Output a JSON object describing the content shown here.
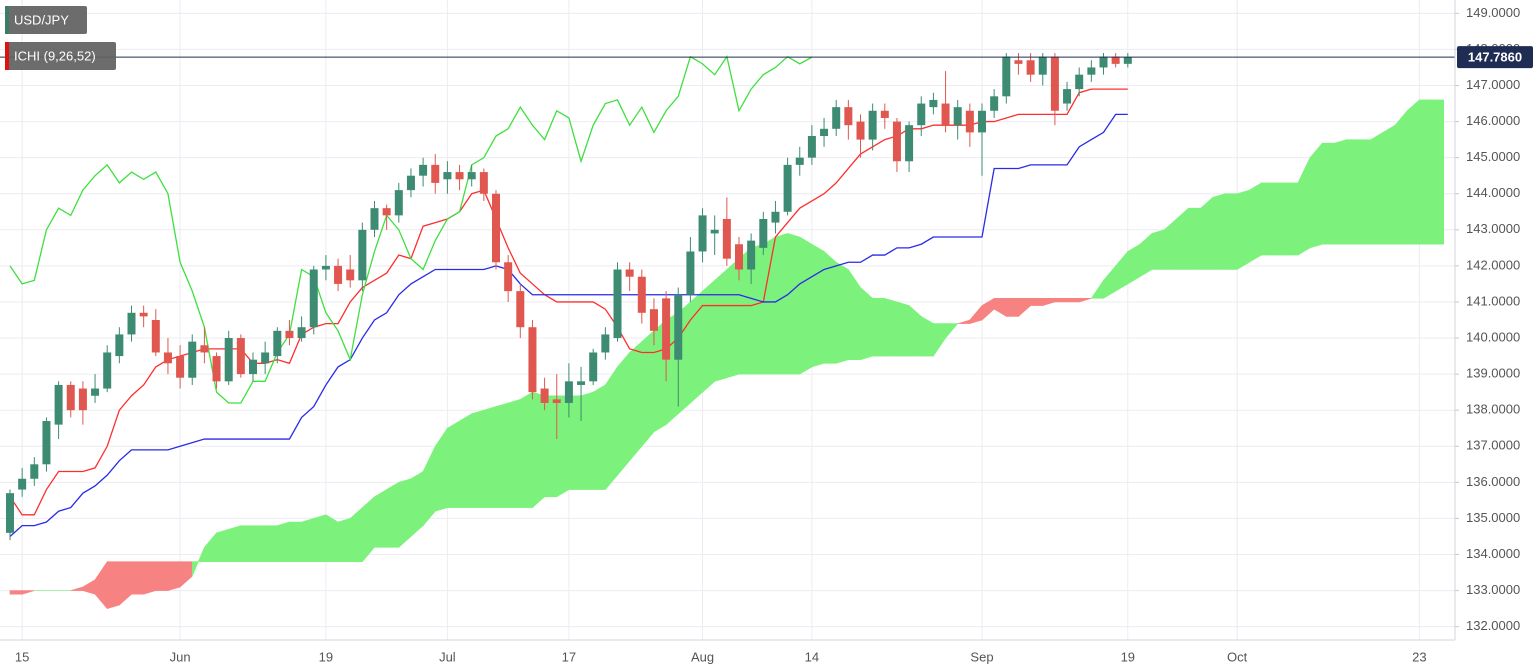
{
  "chart_data": {
    "type": "candlestick",
    "legend": [
      {
        "label": "USD/JPY",
        "color": "#3d7d67"
      },
      {
        "label": "ICHI (9,26,52)",
        "color": "#e01010"
      }
    ],
    "categories": [
      null,
      "15",
      null,
      null,
      null,
      null,
      null,
      null,
      null,
      null,
      null,
      null,
      null,
      null,
      "Jun",
      null,
      null,
      null,
      null,
      null,
      null,
      null,
      null,
      null,
      null,
      null,
      "19",
      null,
      null,
      null,
      null,
      null,
      null,
      null,
      null,
      null,
      "Jul",
      null,
      null,
      null,
      null,
      null,
      null,
      null,
      null,
      null,
      "17",
      null,
      null,
      null,
      null,
      null,
      null,
      null,
      null,
      null,
      null,
      "Aug",
      null,
      null,
      null,
      null,
      null,
      null,
      null,
      null,
      "14",
      null,
      null,
      null,
      null,
      null,
      null,
      null,
      null,
      null,
      null,
      null,
      null,
      null,
      "Sep",
      null,
      null,
      null,
      null,
      null,
      null,
      null,
      null,
      null,
      null,
      null,
      "19",
      null,
      null,
      null,
      null,
      null,
      null,
      null,
      null,
      "Oct",
      null,
      null,
      null,
      null,
      null,
      null,
      null,
      null,
      null,
      null,
      null,
      null,
      null,
      null,
      "23",
      null,
      null
    ],
    "up_color": "#3d8b72",
    "down_color": "#e0574f",
    "open": [
      134.6,
      135.8,
      136.1,
      136.5,
      137.6,
      138.7,
      138.6,
      138.4,
      138.6,
      139.5,
      140.1,
      140.7,
      140.5,
      139.6,
      139.5,
      138.9,
      139.8,
      139.5,
      138.8,
      140.0,
      139.0,
      139.3,
      139.5,
      140.2,
      140.0,
      140.3,
      141.9,
      142.0,
      141.9,
      141.6,
      143.0,
      143.6,
      143.4,
      144.1,
      144.5,
      144.8,
      144.4,
      144.6,
      144.4,
      144.6,
      144.0,
      142.1,
      141.3,
      140.3,
      138.6,
      138.3,
      138.2,
      138.7,
      138.8,
      139.6,
      140.0,
      141.9,
      141.7,
      140.8,
      141.1,
      139.4,
      141.2,
      142.4,
      142.9,
      143.3,
      142.6,
      141.9,
      142.5,
      143.2,
      143.5,
      144.8,
      145.0,
      145.6,
      145.8,
      146.4,
      146.0,
      145.5,
      146.3,
      146.0,
      144.9,
      145.9,
      146.4,
      146.5,
      145.9,
      146.3,
      145.7,
      146.3,
      146.7,
      147.7,
      147.7,
      147.3,
      147.8,
      146.5,
      146.9,
      147.3,
      147.5,
      147.8,
      147.6,
      null,
      null,
      null,
      null,
      null,
      null,
      null,
      null,
      null,
      null,
      null,
      null,
      null,
      null,
      null,
      null,
      null,
      null,
      null,
      null,
      null,
      null,
      null,
      null,
      null,
      null
    ],
    "high": [
      135.8,
      136.4,
      136.7,
      137.8,
      138.8,
      138.8,
      138.8,
      139.0,
      139.8,
      140.3,
      140.9,
      140.9,
      140.8,
      140.0,
      139.8,
      140.1,
      140.3,
      139.6,
      140.2,
      140.1,
      139.6,
      139.9,
      140.3,
      140.5,
      140.6,
      142.0,
      142.3,
      142.2,
      142.3,
      143.2,
      143.8,
      143.7,
      144.3,
      144.7,
      145.0,
      145.1,
      144.9,
      144.8,
      144.8,
      144.7,
      144.1,
      142.3,
      141.5,
      140.5,
      138.9,
      139.0,
      139.3,
      139.2,
      139.7,
      140.3,
      142.1,
      142.1,
      141.9,
      141.1,
      141.3,
      141.4,
      142.8,
      143.6,
      143.4,
      143.9,
      142.8,
      142.9,
      143.5,
      143.8,
      145.0,
      145.3,
      145.9,
      146.1,
      146.6,
      146.6,
      146.2,
      146.5,
      146.5,
      146.1,
      146.0,
      146.7,
      146.8,
      147.4,
      146.6,
      146.5,
      146.5,
      146.9,
      147.9,
      147.9,
      147.9,
      147.9,
      147.9,
      147.1,
      147.5,
      147.7,
      147.9,
      147.9,
      147.9,
      null,
      null,
      null,
      null,
      null,
      null,
      null,
      null,
      null,
      null,
      null,
      null,
      null,
      null,
      null,
      null,
      null,
      null,
      null,
      null,
      null,
      null,
      null,
      null,
      null,
      null
    ],
    "low": [
      134.4,
      135.6,
      135.9,
      136.3,
      137.2,
      137.8,
      137.6,
      138.2,
      138.5,
      139.3,
      139.9,
      140.3,
      139.5,
      139.0,
      138.6,
      138.7,
      139.3,
      138.6,
      138.7,
      138.9,
      138.8,
      139.0,
      139.3,
      139.8,
      139.9,
      140.1,
      141.6,
      141.3,
      141.4,
      141.3,
      142.8,
      143.0,
      143.2,
      143.9,
      144.2,
      144.0,
      144.0,
      144.1,
      144.2,
      143.8,
      141.9,
      141.0,
      140.0,
      138.3,
      138.0,
      137.2,
      137.8,
      137.7,
      138.7,
      139.4,
      139.9,
      141.3,
      140.4,
      139.8,
      138.8,
      138.1,
      141.0,
      142.1,
      142.3,
      142.0,
      141.6,
      141.5,
      142.3,
      142.9,
      143.4,
      144.5,
      144.8,
      145.3,
      145.6,
      145.5,
      145.0,
      145.2,
      145.8,
      144.6,
      144.6,
      145.6,
      146.2,
      145.7,
      145.5,
      145.3,
      144.5,
      146.1,
      146.5,
      147.3,
      147.1,
      147.0,
      145.9,
      146.3,
      146.7,
      147.1,
      147.3,
      147.5,
      147.5,
      null,
      null,
      null,
      null,
      null,
      null,
      null,
      null,
      null,
      null,
      null,
      null,
      null,
      null,
      null,
      null,
      null,
      null,
      null,
      null,
      null,
      null,
      null,
      null,
      null,
      null
    ],
    "close": [
      135.7,
      136.1,
      136.5,
      137.7,
      138.7,
      138.0,
      138.0,
      138.6,
      139.6,
      140.1,
      140.7,
      140.6,
      139.6,
      139.3,
      138.9,
      139.9,
      139.6,
      138.8,
      140.0,
      139.0,
      139.4,
      139.6,
      140.2,
      140.0,
      140.3,
      141.9,
      142.0,
      141.5,
      141.6,
      143.0,
      143.6,
      143.4,
      144.1,
      144.5,
      144.8,
      144.3,
      144.6,
      144.4,
      144.6,
      144.0,
      142.1,
      141.3,
      140.3,
      138.5,
      138.2,
      138.2,
      138.8,
      138.8,
      139.6,
      140.1,
      141.9,
      141.7,
      140.7,
      140.2,
      139.4,
      141.2,
      142.4,
      143.4,
      143.0,
      142.2,
      141.9,
      142.7,
      143.3,
      143.5,
      144.8,
      145.0,
      145.6,
      145.8,
      146.4,
      145.9,
      145.5,
      146.3,
      146.1,
      144.9,
      145.9,
      146.5,
      146.6,
      145.9,
      146.4,
      145.7,
      146.3,
      146.7,
      147.8,
      147.6,
      147.3,
      147.8,
      146.3,
      146.9,
      147.3,
      147.5,
      147.8,
      147.6,
      147.786,
      null,
      null,
      null,
      null,
      null,
      null,
      null,
      null,
      null,
      null,
      null,
      null,
      null,
      null,
      null,
      null,
      null,
      null,
      null,
      null,
      null,
      null,
      null,
      null,
      null,
      null
    ],
    "lines": [
      {
        "color": "#ff2e2e",
        "values": [
          135.6,
          135.1,
          135.1,
          135.8,
          136.3,
          136.3,
          136.3,
          136.4,
          137.0,
          138.0,
          138.4,
          138.7,
          139.2,
          139.4,
          139.5,
          139.6,
          139.7,
          139.7,
          139.7,
          139.7,
          139.3,
          139.3,
          139.4,
          139.3,
          140.1,
          140.3,
          140.4,
          140.4,
          141.0,
          141.4,
          141.6,
          141.8,
          142.3,
          142.2,
          143.1,
          143.2,
          143.3,
          143.5,
          144.0,
          144.1,
          143.3,
          142.5,
          141.8,
          141.5,
          141.2,
          141.0,
          141.0,
          141.0,
          141.0,
          140.8,
          140.3,
          139.7,
          139.6,
          139.6,
          139.7,
          140.0,
          140.5,
          140.9,
          140.9,
          140.9,
          140.9,
          140.9,
          141.0,
          142.8,
          143.2,
          143.6,
          143.8,
          144.0,
          144.3,
          144.7,
          145.1,
          145.3,
          145.5,
          145.6,
          145.8,
          145.8,
          145.9,
          145.9,
          145.9,
          145.9,
          146.0,
          146.0,
          146.1,
          146.2,
          146.2,
          146.2,
          146.2,
          146.2,
          146.8,
          146.9,
          146.9,
          146.9,
          146.9,
          null,
          null,
          null,
          null,
          null,
          null,
          null,
          null,
          null,
          null,
          null,
          null,
          null,
          null,
          null,
          null,
          null,
          null,
          null,
          null,
          null,
          null,
          null,
          null,
          null,
          null
        ]
      },
      {
        "color": "#2a2ae8",
        "values": [
          134.5,
          134.8,
          134.8,
          134.9,
          135.2,
          135.3,
          135.7,
          135.9,
          136.2,
          136.6,
          136.9,
          136.9,
          136.9,
          136.9,
          137.0,
          137.1,
          137.2,
          137.2,
          137.2,
          137.2,
          137.2,
          137.2,
          137.2,
          137.2,
          137.8,
          138.1,
          138.7,
          139.2,
          139.4,
          140.0,
          140.5,
          140.7,
          141.2,
          141.5,
          141.7,
          141.9,
          141.9,
          141.9,
          141.9,
          141.9,
          142.0,
          141.9,
          141.5,
          141.2,
          141.2,
          141.2,
          141.2,
          141.2,
          141.2,
          141.2,
          141.2,
          141.2,
          141.2,
          141.2,
          141.2,
          141.2,
          141.2,
          141.2,
          141.2,
          141.2,
          141.2,
          141.1,
          141.0,
          141.0,
          141.2,
          141.5,
          141.7,
          141.9,
          142.0,
          142.1,
          142.1,
          142.3,
          142.3,
          142.5,
          142.5,
          142.6,
          142.8,
          142.8,
          142.8,
          142.8,
          142.8,
          144.7,
          144.7,
          144.7,
          144.8,
          144.8,
          144.8,
          144.8,
          145.3,
          145.5,
          145.7,
          146.2,
          146.2,
          null,
          null,
          null,
          null,
          null,
          null,
          null,
          null,
          null,
          null,
          null,
          null,
          null,
          null,
          null,
          null,
          null,
          null,
          null,
          null,
          null,
          null,
          null,
          null,
          null,
          null
        ]
      },
      {
        "color": "#3ee03e",
        "values": [
          142.0,
          141.5,
          141.6,
          143.0,
          143.6,
          143.4,
          144.1,
          144.5,
          144.8,
          144.3,
          144.6,
          144.4,
          144.6,
          144.0,
          142.1,
          141.3,
          140.3,
          138.5,
          138.2,
          138.2,
          138.8,
          138.8,
          139.6,
          140.1,
          141.9,
          141.7,
          140.7,
          140.2,
          139.4,
          141.2,
          142.4,
          143.4,
          143.0,
          142.2,
          141.9,
          142.7,
          143.3,
          143.5,
          144.8,
          145.0,
          145.6,
          145.8,
          146.4,
          145.9,
          145.5,
          146.3,
          146.1,
          144.9,
          145.9,
          146.5,
          146.6,
          145.9,
          146.4,
          145.7,
          146.3,
          146.7,
          147.8,
          147.6,
          147.3,
          147.8,
          146.3,
          146.9,
          147.3,
          147.5,
          147.8,
          147.6,
          147.786,
          null,
          null,
          null,
          null,
          null,
          null,
          null,
          null,
          null,
          null,
          null,
          null,
          null,
          null,
          null,
          null,
          null,
          null,
          null,
          null,
          null,
          null,
          null,
          null,
          null,
          null,
          null,
          null,
          null,
          null,
          null,
          null,
          null,
          null,
          null,
          null,
          null,
          null,
          null,
          null,
          null,
          null,
          null,
          null,
          null,
          null,
          null,
          null,
          null
        ]
      }
    ],
    "cloud": {
      "up_color": "#7cf27c",
      "down_color": "#f78282",
      "senkou_a": [
        132.9,
        132.9,
        133.0,
        133.0,
        133.0,
        133.0,
        133.0,
        132.9,
        132.5,
        132.6,
        132.9,
        132.9,
        133.0,
        133.0,
        133.1,
        133.4,
        134.2,
        134.6,
        134.7,
        134.8,
        134.8,
        134.8,
        134.8,
        134.9,
        134.9,
        135.0,
        135.1,
        134.9,
        135.0,
        135.3,
        135.6,
        135.8,
        136.0,
        136.1,
        136.3,
        137.0,
        137.5,
        137.7,
        137.9,
        138.0,
        138.1,
        138.2,
        138.3,
        138.5,
        138.4,
        138.4,
        138.4,
        138.4,
        138.5,
        138.7,
        139.2,
        139.6,
        139.9,
        140.2,
        140.5,
        140.7,
        141.0,
        141.3,
        141.6,
        141.9,
        142.2,
        142.5,
        142.6,
        142.8,
        142.9,
        142.8,
        142.6,
        142.4,
        142.1,
        141.9,
        141.4,
        141.1,
        141.1,
        141.0,
        140.9,
        140.6,
        140.4,
        140.4,
        140.4,
        140.4,
        140.5,
        140.8,
        140.6,
        140.6,
        140.9,
        140.9,
        141.0,
        141.0,
        141.0,
        141.1,
        141.6,
        142.0,
        142.4,
        142.6,
        142.9,
        143.0,
        143.3,
        143.6,
        143.6,
        143.9,
        144.0,
        144.0,
        144.1,
        144.3,
        144.3,
        144.3,
        144.3,
        145.0,
        145.4,
        145.4,
        145.5,
        145.5,
        145.5,
        145.7,
        145.9,
        146.3,
        146.6,
        146.6,
        146.6
      ],
      "senkou_b": [
        133.0,
        133.0,
        133.0,
        133.0,
        133.0,
        133.0,
        133.1,
        133.3,
        133.8,
        133.8,
        133.8,
        133.8,
        133.8,
        133.8,
        133.8,
        133.8,
        133.8,
        133.8,
        133.8,
        133.8,
        133.8,
        133.8,
        133.8,
        133.8,
        133.8,
        133.8,
        133.8,
        133.8,
        133.8,
        133.8,
        134.2,
        134.2,
        134.2,
        134.5,
        134.8,
        135.2,
        135.3,
        135.3,
        135.3,
        135.3,
        135.3,
        135.3,
        135.3,
        135.3,
        135.6,
        135.6,
        135.8,
        135.8,
        135.8,
        135.8,
        136.2,
        136.6,
        137.0,
        137.4,
        137.6,
        137.9,
        138.2,
        138.5,
        138.8,
        138.9,
        139.0,
        139.0,
        139.0,
        139.0,
        139.0,
        139.0,
        139.2,
        139.3,
        139.3,
        139.4,
        139.4,
        139.5,
        139.5,
        139.5,
        139.5,
        139.5,
        139.5,
        140.0,
        140.4,
        140.5,
        140.9,
        141.1,
        141.1,
        141.1,
        141.1,
        141.1,
        141.1,
        141.1,
        141.1,
        141.1,
        141.1,
        141.3,
        141.5,
        141.7,
        141.9,
        141.9,
        141.9,
        141.9,
        141.9,
        141.9,
        141.9,
        141.9,
        142.1,
        142.3,
        142.3,
        142.3,
        142.3,
        142.5,
        142.6,
        142.6,
        142.6,
        142.6,
        142.6,
        142.6,
        142.6,
        142.6,
        142.6,
        142.6,
        142.6
      ]
    },
    "last_price": {
      "value": 147.786,
      "label": "147.7860",
      "color": "#1f2d55"
    },
    "ylim": [
      131.63,
      149.37
    ],
    "yticks": [
      {
        "value": 132,
        "label": "132.0000"
      },
      {
        "value": 133,
        "label": "133.0000"
      },
      {
        "value": 134,
        "label": "134.0000"
      },
      {
        "value": 135,
        "label": "135.0000"
      },
      {
        "value": 136,
        "label": "136.0000"
      },
      {
        "value": 137,
        "label": "137.0000"
      },
      {
        "value": 138,
        "label": "138.0000"
      },
      {
        "value": 139,
        "label": "139.0000"
      },
      {
        "value": 140,
        "label": "140.0000"
      },
      {
        "value": 141,
        "label": "141.0000"
      },
      {
        "value": 142,
        "label": "142.0000"
      },
      {
        "value": 143,
        "label": "143.0000"
      },
      {
        "value": 144,
        "label": "144.0000"
      },
      {
        "value": 145,
        "label": "145.0000"
      },
      {
        "value": 146,
        "label": "146.0000"
      },
      {
        "value": 147,
        "label": "147.0000"
      },
      {
        "value": 148,
        "label": "148.0000"
      },
      {
        "value": 149,
        "label": "149.0000"
      }
    ],
    "grid": true
  }
}
